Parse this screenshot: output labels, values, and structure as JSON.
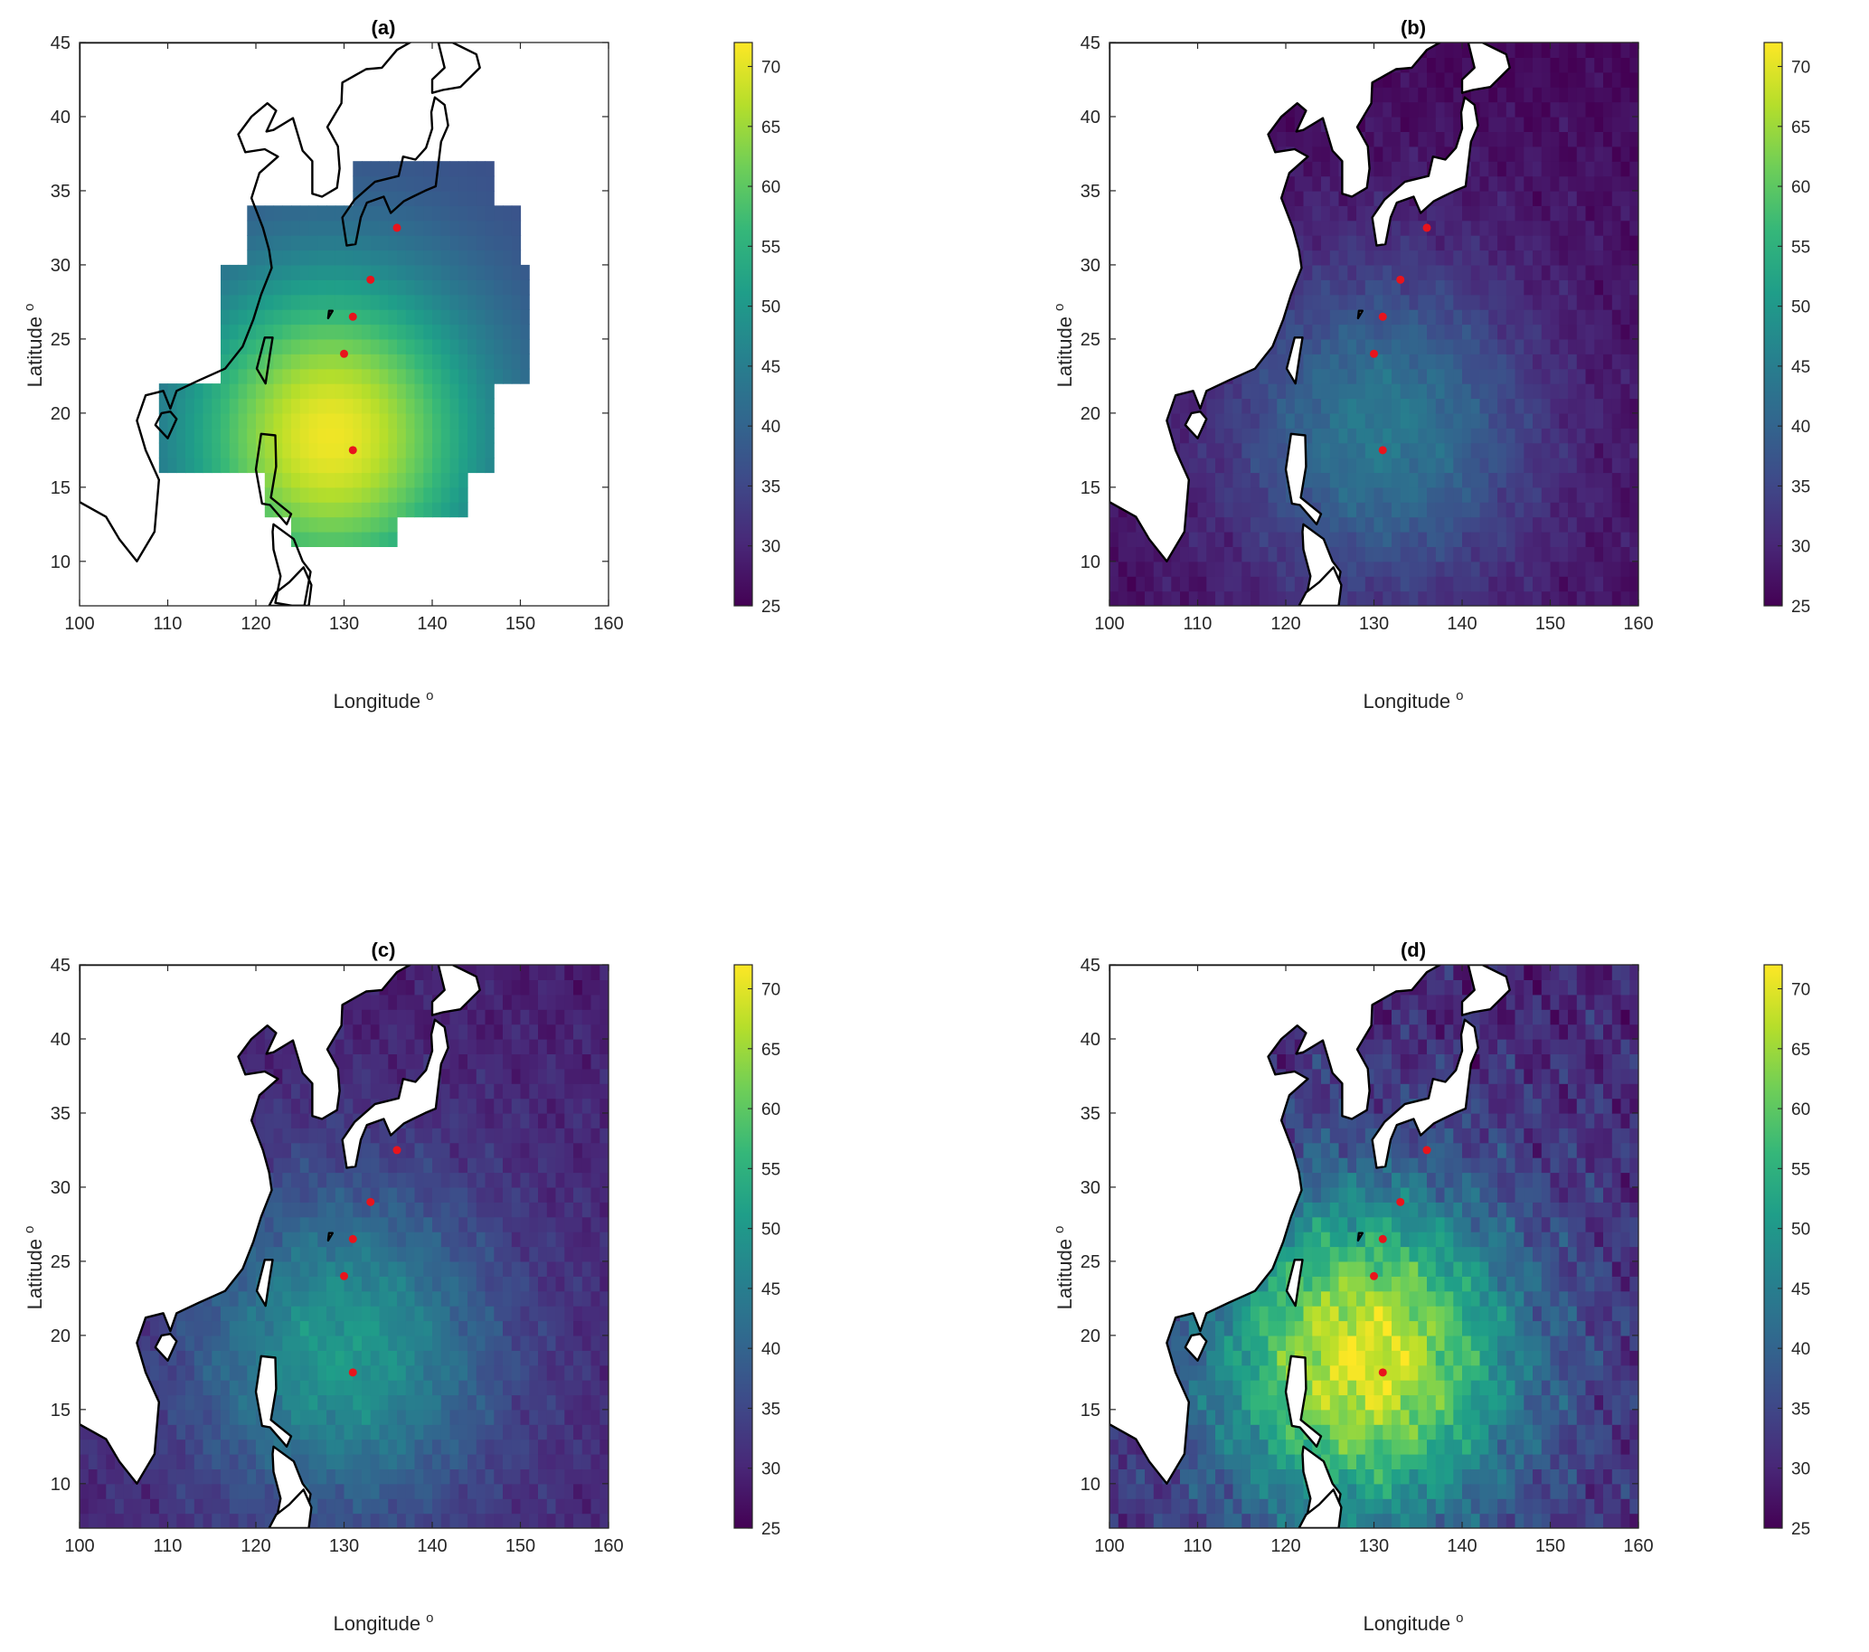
{
  "colors": {
    "colormap": [
      "#440154",
      "#482878",
      "#3e4a89",
      "#31688e",
      "#26828e",
      "#1f9e89",
      "#35b779",
      "#6ece58",
      "#b5de2b",
      "#fde725"
    ],
    "site_marker": "#e8141c",
    "land_fill": "#ffffff",
    "coastline": "#000000"
  },
  "chart_data": [
    {
      "type": "heatmap",
      "id": "a",
      "title": "(a)",
      "xlabel": "Longitude",
      "ylabel": "Latitude",
      "xlabel_superscript": "o",
      "ylabel_superscript": "o",
      "xlim": [
        100,
        160
      ],
      "ylim": [
        7,
        45
      ],
      "xticks": [
        100,
        110,
        120,
        130,
        140,
        150,
        160
      ],
      "yticks": [
        10,
        15,
        20,
        25,
        30,
        35,
        40,
        45
      ],
      "colorbar": {
        "min": 25,
        "max": 72,
        "ticks": [
          25,
          30,
          35,
          40,
          45,
          50,
          55,
          60,
          65,
          70
        ]
      },
      "field": {
        "kind": "smooth",
        "peak": [
          128.5,
          18.5
        ],
        "peak_value": 71,
        "edge_value": 36,
        "masked_outside_domain": true
      },
      "points": [
        [
          136,
          32.5
        ],
        [
          133,
          29
        ],
        [
          131,
          26.5
        ],
        [
          130,
          24
        ],
        [
          131,
          17.5
        ]
      ]
    },
    {
      "type": "heatmap",
      "id": "b",
      "title": "(b)",
      "xlabel": "Longitude",
      "ylabel": "Latitude",
      "xlabel_superscript": "o",
      "ylabel_superscript": "o",
      "xlim": [
        100,
        160
      ],
      "ylim": [
        7,
        45
      ],
      "xticks": [
        100,
        110,
        120,
        130,
        140,
        150,
        160
      ],
      "yticks": [
        10,
        15,
        20,
        25,
        30,
        35,
        40,
        45
      ],
      "colorbar": {
        "min": 25,
        "max": 72,
        "ticks": [
          25,
          30,
          35,
          40,
          45,
          50,
          55,
          60,
          65,
          70
        ]
      },
      "field": {
        "kind": "noisy",
        "peak": [
          131,
          19
        ],
        "peak_value": 44,
        "edge_value": 27
      },
      "points": [
        [
          136,
          32.5
        ],
        [
          133,
          29
        ],
        [
          131,
          26.5
        ],
        [
          130,
          24
        ],
        [
          131,
          17.5
        ]
      ]
    },
    {
      "type": "heatmap",
      "id": "c",
      "title": "(c)",
      "xlabel": "Longitude",
      "ylabel": "Latitude",
      "xlabel_superscript": "o",
      "ylabel_superscript": "o",
      "xlim": [
        100,
        160
      ],
      "ylim": [
        7,
        45
      ],
      "xticks": [
        100,
        110,
        120,
        130,
        140,
        150,
        160
      ],
      "yticks": [
        10,
        15,
        20,
        25,
        30,
        35,
        40,
        45
      ],
      "colorbar": {
        "min": 25,
        "max": 72,
        "ticks": [
          25,
          30,
          35,
          40,
          45,
          50,
          55,
          60,
          65,
          70
        ]
      },
      "field": {
        "kind": "noisy",
        "peak": [
          130,
          19
        ],
        "peak_value": 50,
        "edge_value": 30
      },
      "points": [
        [
          136,
          32.5
        ],
        [
          133,
          29
        ],
        [
          131,
          26.5
        ],
        [
          130,
          24
        ],
        [
          131,
          17.5
        ]
      ]
    },
    {
      "type": "heatmap",
      "id": "d",
      "title": "(d)",
      "xlabel": "Longitude",
      "ylabel": "Latitude",
      "xlabel_superscript": "o",
      "ylabel_superscript": "o",
      "xlim": [
        100,
        160
      ],
      "ylim": [
        7,
        45
      ],
      "xticks": [
        100,
        110,
        120,
        130,
        140,
        150,
        160
      ],
      "yticks": [
        10,
        15,
        20,
        25,
        30,
        35,
        40,
        45
      ],
      "colorbar": {
        "min": 25,
        "max": 72,
        "ticks": [
          25,
          30,
          35,
          40,
          45,
          50,
          55,
          60,
          65,
          70
        ]
      },
      "field": {
        "kind": "noisy",
        "peak": [
          129,
          18.5
        ],
        "peak_value": 70,
        "edge_value": 31
      },
      "points": [
        [
          136,
          32.5
        ],
        [
          133,
          29
        ],
        [
          131,
          26.5
        ],
        [
          130,
          24
        ],
        [
          131,
          17.5
        ]
      ]
    }
  ]
}
